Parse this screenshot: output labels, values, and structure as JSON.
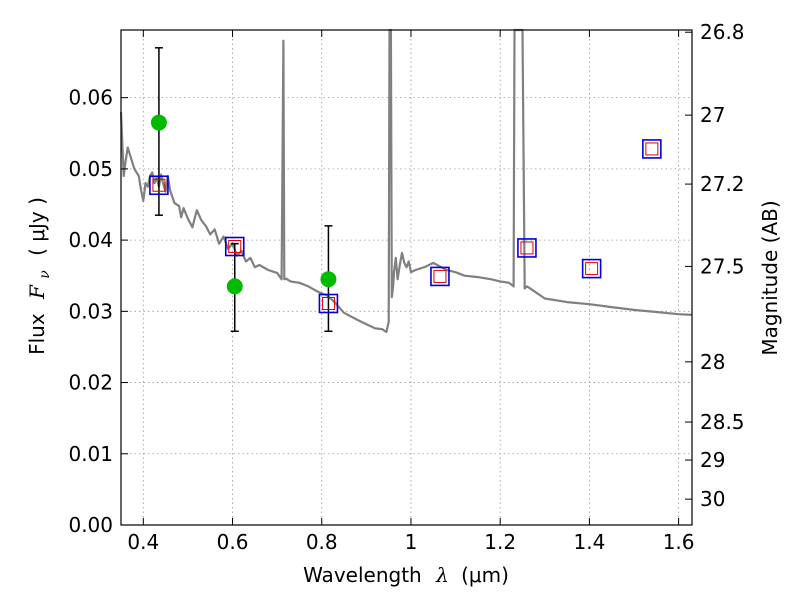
{
  "chart_data": {
    "type": "scatter",
    "title": "",
    "xlabel_prefix": "Wavelength",
    "xlabel_symbol": "λ",
    "xlabel_unit": "(μm)",
    "ylabel_prefix": "Flux",
    "ylabel_symbol": "F",
    "ylabel_subscript": "ν",
    "ylabel_unit": "( μJy )",
    "y2label": "Magnitude (AB)",
    "xlim": [
      0.35,
      1.63
    ],
    "ylim": [
      0.0,
      0.0695
    ],
    "grid": true,
    "x_ticks": [
      0.4,
      0.6,
      0.8,
      1.0,
      1.2,
      1.4,
      1.6
    ],
    "x_tick_labels": [
      "0.4",
      "0.6",
      "0.8",
      "1",
      "1.2",
      "1.4",
      "1.6"
    ],
    "y_ticks": [
      0.0,
      0.01,
      0.02,
      0.03,
      0.04,
      0.05,
      0.06
    ],
    "y_tick_labels": [
      "0.00",
      "0.01",
      "0.02",
      "0.03",
      "0.04",
      "0.05",
      "0.06"
    ],
    "mag_ticks": [
      26.8,
      27,
      27.2,
      27.5,
      28,
      28.5,
      29,
      30
    ],
    "mag_tick_labels": [
      "26.8",
      "27",
      "27.2",
      "27.5",
      "28",
      "28.5",
      "29",
      "30"
    ],
    "colors": {
      "model": "#808080",
      "observed": "#00bb00",
      "model_photometry": "#0000dd",
      "model_photometry_inner": "#dd0000",
      "errorbar": "#000000",
      "grid": "#999999"
    },
    "series": [
      {
        "name": "SED model",
        "kind": "line",
        "x": [
          0.35,
          0.352,
          0.356,
          0.36,
          0.365,
          0.37,
          0.38,
          0.39,
          0.395,
          0.4,
          0.405,
          0.41,
          0.415,
          0.42,
          0.425,
          0.43,
          0.435,
          0.44,
          0.445,
          0.45,
          0.455,
          0.46,
          0.47,
          0.48,
          0.485,
          0.49,
          0.5,
          0.51,
          0.52,
          0.53,
          0.54,
          0.55,
          0.56,
          0.57,
          0.58,
          0.59,
          0.6,
          0.61,
          0.62,
          0.63,
          0.64,
          0.65,
          0.66,
          0.68,
          0.7,
          0.71,
          0.714,
          0.716,
          0.72,
          0.73,
          0.75,
          0.77,
          0.79,
          0.8,
          0.81,
          0.82,
          0.83,
          0.85,
          0.88,
          0.9,
          0.92,
          0.935,
          0.945,
          0.95,
          0.952,
          0.955,
          0.957,
          0.96,
          0.962,
          0.966,
          0.97,
          0.975,
          0.98,
          0.985,
          0.99,
          0.995,
          1.0,
          1.01,
          1.03,
          1.05,
          1.08,
          1.1,
          1.12,
          1.15,
          1.18,
          1.2,
          1.22,
          1.23,
          1.232,
          1.235,
          1.24,
          1.25,
          1.255,
          1.26,
          1.265,
          1.3,
          1.35,
          1.4,
          1.45,
          1.5,
          1.55,
          1.6,
          1.63
        ],
        "y": [
          0.058,
          0.055,
          0.049,
          0.051,
          0.053,
          0.052,
          0.05,
          0.049,
          0.047,
          0.0455,
          0.048,
          0.0475,
          0.049,
          0.0495,
          0.048,
          0.0488,
          0.0475,
          0.0492,
          0.0478,
          0.0468,
          0.049,
          0.047,
          0.0452,
          0.0448,
          0.0432,
          0.0445,
          0.043,
          0.0418,
          0.0442,
          0.0428,
          0.042,
          0.0408,
          0.0415,
          0.0395,
          0.0405,
          0.0388,
          0.0395,
          0.0378,
          0.0385,
          0.037,
          0.0375,
          0.0362,
          0.0365,
          0.0358,
          0.0354,
          0.0345,
          0.068,
          0.0345,
          0.0346,
          0.0342,
          0.034,
          0.0335,
          0.0328,
          0.0325,
          0.0323,
          0.0318,
          0.0312,
          0.0298,
          0.0288,
          0.0282,
          0.0276,
          0.0275,
          0.0271,
          0.0285,
          0.0695,
          0.0695,
          0.032,
          0.0335,
          0.0355,
          0.0375,
          0.0345,
          0.0365,
          0.0382,
          0.0368,
          0.0362,
          0.037,
          0.0355,
          0.0358,
          0.0362,
          0.0368,
          0.0358,
          0.0355,
          0.035,
          0.0348,
          0.0345,
          0.0342,
          0.034,
          0.0335,
          0.0695,
          0.0695,
          0.0695,
          0.0695,
          0.0332,
          0.0335,
          0.0333,
          0.0318,
          0.0313,
          0.031,
          0.0306,
          0.0302,
          0.0299,
          0.0296,
          0.0295
        ]
      },
      {
        "name": "Observed photometry",
        "kind": "points_with_errors",
        "x": [
          0.435,
          0.605,
          0.815
        ],
        "y": [
          0.0565,
          0.0335,
          0.0345
        ],
        "err_low": [
          0.0435,
          0.0272,
          0.0272
        ],
        "err_high": [
          0.067,
          0.0395,
          0.042
        ]
      },
      {
        "name": "Model photometry",
        "kind": "squares",
        "x": [
          0.435,
          0.605,
          0.815,
          1.065,
          1.26,
          1.405,
          1.54
        ],
        "y": [
          0.0477,
          0.0391,
          0.0311,
          0.0349,
          0.0389,
          0.036,
          0.0528
        ]
      }
    ]
  }
}
